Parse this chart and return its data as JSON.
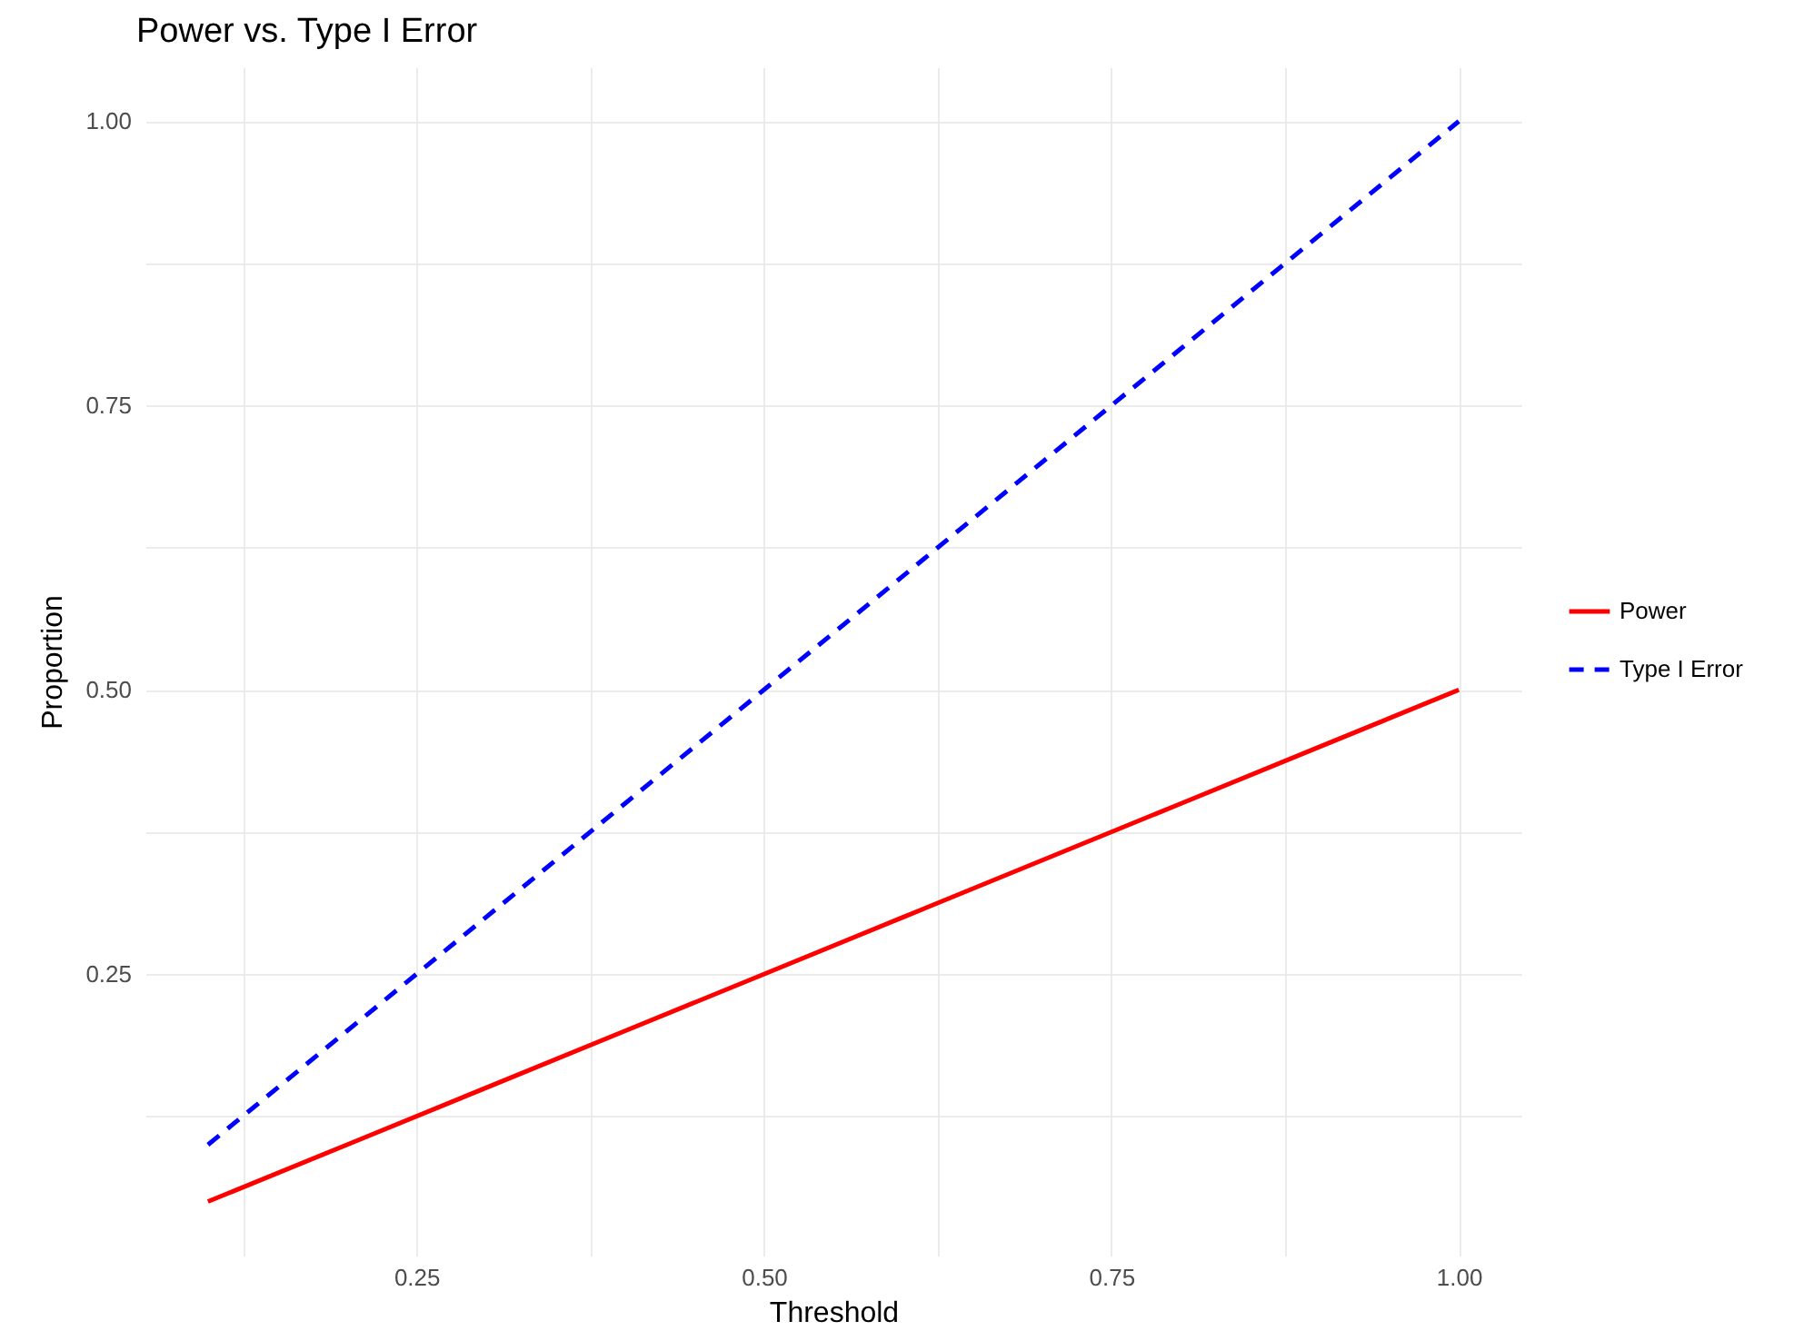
{
  "chart_data": {
    "type": "line",
    "title": "Power vs. Type I Error",
    "xlabel": "Threshold",
    "ylabel": "Proportion",
    "x": [
      0.1,
      0.2,
      0.3,
      0.4,
      0.5,
      0.6,
      0.7,
      0.8,
      0.9,
      1.0
    ],
    "series": [
      {
        "name": "Power",
        "color": "#ff0000",
        "line_style": "solid",
        "values": [
          0.05,
          0.1,
          0.15,
          0.2,
          0.25,
          0.3,
          0.35,
          0.4,
          0.45,
          0.5
        ]
      },
      {
        "name": "Type I Error",
        "color": "#0000ff",
        "line_style": "dashed",
        "values": [
          0.1,
          0.2,
          0.3,
          0.4,
          0.5,
          0.6,
          0.7,
          0.8,
          0.9,
          1.0
        ]
      }
    ],
    "xlim": [
      0.055,
      1.045
    ],
    "ylim": [
      0.0025,
      1.0475
    ],
    "xticks": [
      {
        "value": 0.125,
        "label": null
      },
      0.25,
      {
        "value": 0.375,
        "label": null
      },
      {
        "value": 0.5,
        "label": "0.50"
      },
      {
        "value": 0.625,
        "label": null
      },
      0.75,
      {
        "value": 0.875,
        "label": null
      },
      {
        "value": 1,
        "label": "1.00"
      }
    ],
    "yticks": [
      {
        "value": 0.125,
        "label": null
      },
      0.25,
      {
        "value": 0.375,
        "label": null
      },
      {
        "value": 0.5,
        "label": "0.50"
      },
      {
        "value": 0.625,
        "label": null
      },
      0.75,
      {
        "value": 0.875,
        "label": null
      },
      {
        "value": 1,
        "label": "1.00"
      }
    ],
    "grid": true,
    "legend": "right",
    "marker": "none"
  }
}
